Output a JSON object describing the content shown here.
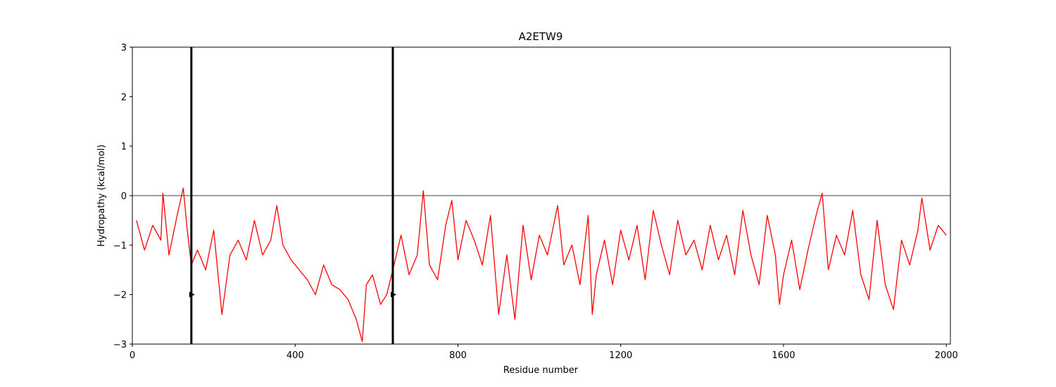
{
  "chart_data": {
    "type": "line",
    "title": "A2ETW9",
    "xlabel": "Residue number",
    "ylabel": "Hydropathy (kcal/mol)",
    "xlim": [
      0,
      2010
    ],
    "ylim": [
      -3,
      3
    ],
    "xticks": [
      0,
      400,
      800,
      1200,
      1600,
      2000
    ],
    "yticks": [
      -3,
      -2,
      -1,
      0,
      1,
      2,
      3
    ],
    "ytick_labels": [
      "−3",
      "−2",
      "−1",
      "0",
      "1",
      "2",
      "3"
    ],
    "grid": false,
    "reference_line_y": 0,
    "series_color": "#ff0000",
    "marker_lines_x": [
      145,
      640
    ],
    "markers": [
      {
        "x": 145,
        "y": -2
      },
      {
        "x": 640,
        "y": -2
      }
    ],
    "series": [
      {
        "x": [
          10,
          30,
          50,
          70,
          75,
          90,
          110,
          125,
          135,
          145,
          160,
          180,
          200,
          220,
          240,
          260,
          280,
          300,
          320,
          340,
          355,
          370,
          390,
          410,
          430,
          450,
          470,
          490,
          510,
          530,
          550,
          565,
          575,
          590,
          610,
          625,
          640,
          660,
          680,
          700,
          715,
          730,
          750,
          770,
          785,
          800,
          820,
          840,
          860,
          880,
          900,
          920,
          940,
          960,
          980,
          1000,
          1020,
          1045,
          1060,
          1080,
          1100,
          1120,
          1130,
          1140,
          1160,
          1180,
          1200,
          1220,
          1240,
          1260,
          1280,
          1300,
          1320,
          1340,
          1360,
          1380,
          1400,
          1420,
          1440,
          1460,
          1480,
          1500,
          1520,
          1540,
          1560,
          1580,
          1590,
          1600,
          1620,
          1640,
          1660,
          1680,
          1695,
          1710,
          1730,
          1750,
          1770,
          1790,
          1810,
          1830,
          1850,
          1870,
          1890,
          1910,
          1930,
          1940,
          1960,
          1980,
          2000
        ],
        "y": [
          -0.5,
          -1.1,
          -0.6,
          -0.9,
          0.05,
          -1.2,
          -0.4,
          0.15,
          -0.7,
          -1.4,
          -1.1,
          -1.5,
          -0.7,
          -2.4,
          -1.2,
          -0.9,
          -1.3,
          -0.5,
          -1.2,
          -0.9,
          -0.2,
          -1.0,
          -1.3,
          -1.5,
          -1.7,
          -2.0,
          -1.4,
          -1.8,
          -1.9,
          -2.1,
          -2.5,
          -2.95,
          -1.8,
          -1.6,
          -2.2,
          -2.0,
          -1.5,
          -0.8,
          -1.6,
          -1.2,
          0.1,
          -1.4,
          -1.7,
          -0.6,
          -0.1,
          -1.3,
          -0.5,
          -0.9,
          -1.4,
          -0.4,
          -2.4,
          -1.2,
          -2.5,
          -0.6,
          -1.7,
          -0.8,
          -1.2,
          -0.2,
          -1.4,
          -1.0,
          -1.8,
          -0.4,
          -2.4,
          -1.6,
          -0.9,
          -1.8,
          -0.7,
          -1.3,
          -0.6,
          -1.7,
          -0.3,
          -1.0,
          -1.6,
          -0.5,
          -1.2,
          -0.9,
          -1.5,
          -0.6,
          -1.3,
          -0.8,
          -1.6,
          -0.3,
          -1.2,
          -1.8,
          -0.4,
          -1.2,
          -2.2,
          -1.6,
          -0.9,
          -1.9,
          -1.1,
          -0.4,
          0.05,
          -1.5,
          -0.8,
          -1.2,
          -0.3,
          -1.6,
          -2.1,
          -0.5,
          -1.8,
          -2.3,
          -0.9,
          -1.4,
          -0.7,
          -0.05,
          -1.1,
          -0.6,
          -0.8
        ]
      }
    ]
  }
}
